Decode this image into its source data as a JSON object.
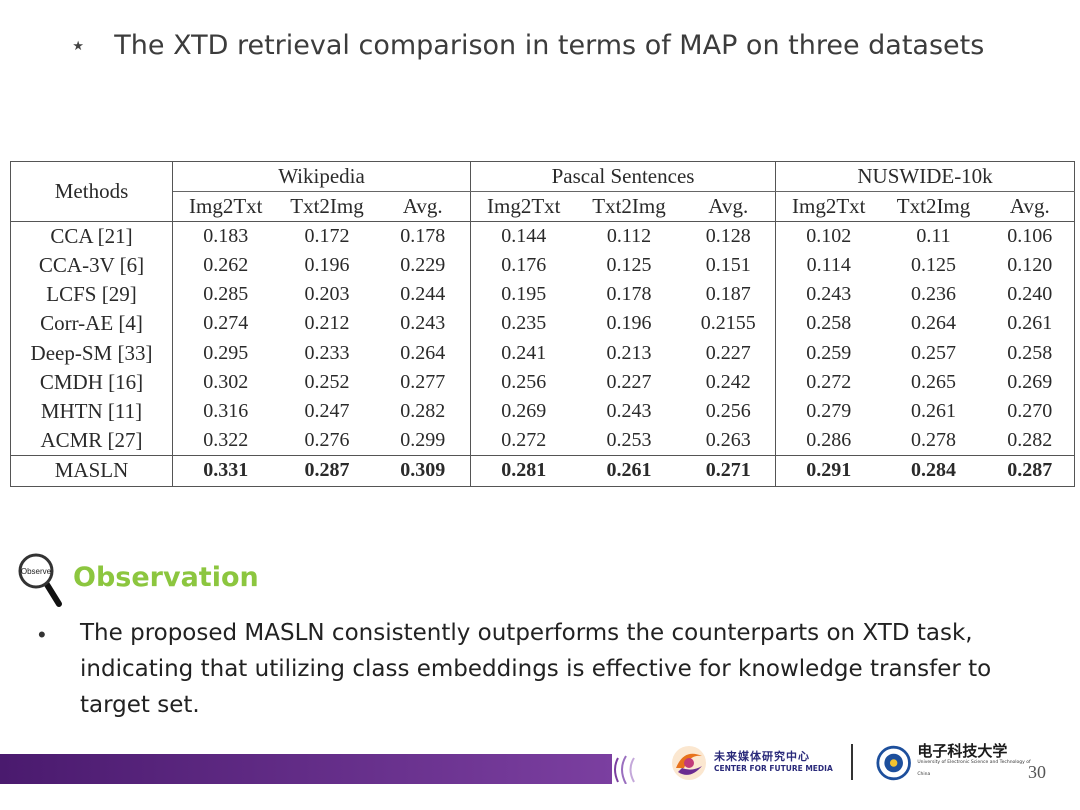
{
  "slide": {
    "title_star": "⋆",
    "title": "The XTD retrieval comparison in terms of MAP on three datasets",
    "page_number": "30"
  },
  "table": {
    "methods_header": "Methods",
    "groups": [
      "Wikipedia",
      "Pascal Sentences",
      "NUSWIDE-10k"
    ],
    "subheaders": [
      "Img2Txt",
      "Txt2Img",
      "Avg.",
      "Img2Txt",
      "Txt2Img",
      "Avg.",
      "Img2Txt",
      "Txt2Img",
      "Avg."
    ],
    "rows": [
      {
        "method": "CCA [21]",
        "values": [
          "0.183",
          "0.172",
          "0.178",
          "0.144",
          "0.112",
          "0.128",
          "0.102",
          "0.11",
          "0.106"
        ]
      },
      {
        "method": "CCA-3V [6]",
        "values": [
          "0.262",
          "0.196",
          "0.229",
          "0.176",
          "0.125",
          "0.151",
          "0.114",
          "0.125",
          "0.120"
        ]
      },
      {
        "method": "LCFS [29]",
        "values": [
          "0.285",
          "0.203",
          "0.244",
          "0.195",
          "0.178",
          "0.187",
          "0.243",
          "0.236",
          "0.240"
        ]
      },
      {
        "method": "Corr-AE [4]",
        "values": [
          "0.274",
          "0.212",
          "0.243",
          "0.235",
          "0.196",
          "0.2155",
          "0.258",
          "0.264",
          "0.261"
        ]
      },
      {
        "method": "Deep-SM [33]",
        "values": [
          "0.295",
          "0.233",
          "0.264",
          "0.241",
          "0.213",
          "0.227",
          "0.259",
          "0.257",
          "0.258"
        ]
      },
      {
        "method": "CMDH [16]",
        "values": [
          "0.302",
          "0.252",
          "0.277",
          "0.256",
          "0.227",
          "0.242",
          "0.272",
          "0.265",
          "0.269"
        ]
      },
      {
        "method": "MHTN [11]",
        "values": [
          "0.316",
          "0.247",
          "0.282",
          "0.269",
          "0.243",
          "0.256",
          "0.279",
          "0.261",
          "0.270"
        ]
      },
      {
        "method": "ACMR [27]",
        "values": [
          "0.322",
          "0.276",
          "0.299",
          "0.272",
          "0.253",
          "0.263",
          "0.286",
          "0.278",
          "0.282"
        ]
      }
    ],
    "final_row": {
      "method": "MASLN",
      "values": [
        "0.331",
        "0.287",
        "0.309",
        "0.281",
        "0.261",
        "0.271",
        "0.291",
        "0.284",
        "0.287"
      ]
    }
  },
  "observation": {
    "icon_label": "Observe",
    "title": "Observation",
    "bullet": "•",
    "lines": [
      "The proposed MASLN consistently outperforms the counterparts on XTD task,",
      "indicating that utilizing class embeddings is effective for knowledge transfer to",
      "target set."
    ]
  },
  "footer": {
    "cfm_cn": "未来媒体研究中心",
    "cfm_en": "CENTER FOR FUTURE MEDIA",
    "uestc_cn": "电子科技大学",
    "uestc_en": "University of Electronic Science and Technology of China",
    "colors": {
      "bar_start": "#4a1a6e",
      "bar_end": "#7b3fa0",
      "observation_green": "#8cc63f"
    }
  }
}
